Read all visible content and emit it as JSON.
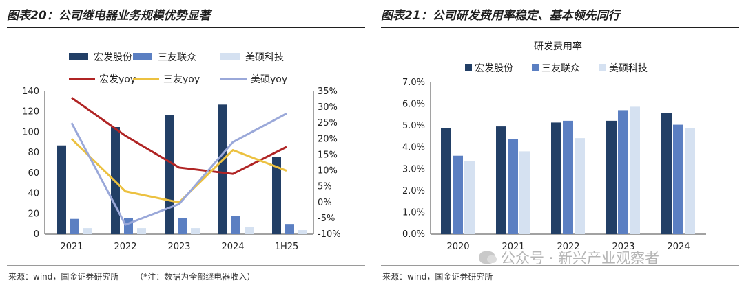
{
  "left": {
    "title": "图表20：公司继电器业务规模优势显著",
    "source": "来源：wind，国金证券研究所",
    "note": "（*注：数据为全部继电器收入）"
  },
  "right": {
    "title": "图表21：公司研发费用率稳定、基本领先同行",
    "source": "来源：wind，国金证券研究所"
  },
  "watermark": "公众号 · 新兴产业观察者",
  "colors": {
    "dark_navy": "#223f66",
    "mid_blue": "#5b7fc2",
    "light_blue": "#d5e1f1",
    "line_red": "#b02424",
    "line_yellow": "#ecc140",
    "line_lavender": "#9aa8d9"
  },
  "chart_data": [
    {
      "type": "bar",
      "categories": [
        "2021",
        "2022",
        "2023",
        "2024",
        "1H25"
      ],
      "ylim": [
        0,
        140
      ],
      "y_ticks": [
        "0",
        "20",
        "40",
        "60",
        "80",
        "100",
        "120",
        "140"
      ],
      "y2lim": [
        -0.1,
        0.35
      ],
      "y2_ticks": [
        "-10%",
        "-5%",
        "0%",
        "5%",
        "10%",
        "15%",
        "20%",
        "25%",
        "30%",
        "35%"
      ],
      "legend_position": "top",
      "series": [
        {
          "name": "宏发股份",
          "kind": "bar",
          "axis": "left",
          "color": "#223f66",
          "values": [
            87,
            105,
            117,
            127,
            76
          ]
        },
        {
          "name": "三友联众",
          "kind": "bar",
          "axis": "left",
          "color": "#5b7fc2",
          "values": [
            15,
            16,
            16,
            18,
            10
          ]
        },
        {
          "name": "美硕科技",
          "kind": "bar",
          "axis": "left",
          "color": "#d5e1f1",
          "values": [
            6,
            6,
            6,
            7,
            4
          ]
        },
        {
          "name": "宏发yoy",
          "kind": "line",
          "axis": "right",
          "color": "#b02424",
          "values": [
            0.33,
            0.21,
            0.11,
            0.09,
            0.175
          ]
        },
        {
          "name": "三友yoy",
          "kind": "line",
          "axis": "right",
          "color": "#ecc140",
          "values": [
            0.2,
            0.035,
            0.0,
            0.165,
            0.1
          ]
        },
        {
          "name": "美硕yoy",
          "kind": "line",
          "axis": "right",
          "color": "#9aa8d9",
          "values": [
            0.25,
            -0.07,
            -0.005,
            0.19,
            0.28
          ]
        }
      ]
    },
    {
      "type": "bar",
      "title": "研发费用率",
      "categories": [
        "2020",
        "2021",
        "2022",
        "2023",
        "2024"
      ],
      "ylim": [
        0,
        0.07
      ],
      "y_ticks": [
        "0.0%",
        "1.0%",
        "2.0%",
        "3.0%",
        "4.0%",
        "5.0%",
        "6.0%",
        "7.0%"
      ],
      "legend_position": "top",
      "series": [
        {
          "name": "宏发股份",
          "color": "#223f66",
          "values": [
            0.049,
            0.0497,
            0.0515,
            0.0523,
            0.056
          ]
        },
        {
          "name": "三友联众",
          "color": "#5b7fc2",
          "values": [
            0.0362,
            0.0438,
            0.0523,
            0.0572,
            0.0505
          ]
        },
        {
          "name": "美硕科技",
          "color": "#d5e1f1",
          "values": [
            0.0338,
            0.0382,
            0.0443,
            0.0588,
            0.049
          ]
        }
      ]
    }
  ]
}
